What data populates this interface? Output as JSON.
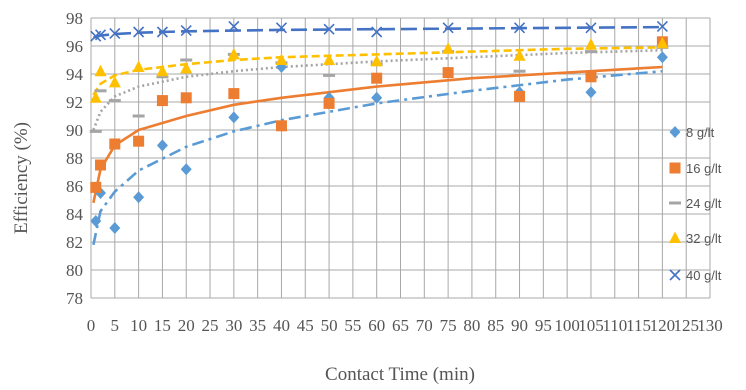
{
  "chart_data": {
    "type": "scatter",
    "title": "",
    "xlabel": "Contact Time (min)",
    "ylabel": "Efficiency (%)",
    "xlim": [
      0,
      130
    ],
    "ylim": [
      78,
      98
    ],
    "x_ticks": [
      "0",
      "5",
      "10",
      "15",
      "20",
      "25",
      "30",
      "35",
      "40",
      "45",
      "50",
      "55",
      "60",
      "65",
      "70",
      "75",
      "80",
      "85",
      "90",
      "95",
      "100",
      "105",
      "110",
      "115",
      "120",
      "125",
      "130"
    ],
    "y_ticks": [
      "78",
      "80",
      "82",
      "84",
      "86",
      "88",
      "90",
      "92",
      "94",
      "96",
      "98"
    ],
    "grid": true,
    "legend": "right",
    "series": [
      {
        "name": "8 g/lt",
        "marker": "diamond",
        "color": "#5B9BD5",
        "trendline": "dash-dot",
        "trend_points": [
          [
            0.5,
            81.8
          ],
          [
            2,
            84.2
          ],
          [
            5,
            85.6
          ],
          [
            10,
            87.1
          ],
          [
            20,
            88.8
          ],
          [
            30,
            89.9
          ],
          [
            40,
            90.7
          ],
          [
            60,
            91.9
          ],
          [
            80,
            92.8
          ],
          [
            100,
            93.6
          ],
          [
            120,
            94.2
          ]
        ],
        "x": [
          1,
          2,
          5,
          10,
          15,
          20,
          30,
          40,
          50,
          60,
          90,
          105,
          120
        ],
        "y": [
          83.5,
          85.5,
          83.0,
          85.2,
          88.9,
          87.2,
          90.9,
          94.5,
          92.3,
          92.3,
          92.7,
          92.7,
          95.2
        ]
      },
      {
        "name": "16 g/lt",
        "marker": "square",
        "color": "#ED7D31",
        "trendline": "solid",
        "trend_points": [
          [
            0.5,
            84.8
          ],
          [
            2,
            87.2
          ],
          [
            5,
            88.9
          ],
          [
            10,
            90.0
          ],
          [
            20,
            91.0
          ],
          [
            30,
            91.8
          ],
          [
            40,
            92.3
          ],
          [
            60,
            93.1
          ],
          [
            80,
            93.7
          ],
          [
            100,
            94.1
          ],
          [
            120,
            94.5
          ]
        ],
        "x": [
          1,
          2,
          5,
          10,
          15,
          20,
          30,
          40,
          50,
          60,
          75,
          90,
          105,
          120
        ],
        "y": [
          85.9,
          87.5,
          89.0,
          89.2,
          92.1,
          92.3,
          92.6,
          90.3,
          91.9,
          93.7,
          94.1,
          92.4,
          93.8,
          96.3
        ]
      },
      {
        "name": "24 g/lt",
        "marker": "dash",
        "color": "#A5A5A5",
        "trendline": "dotted",
        "trend_points": [
          [
            0.5,
            90.0
          ],
          [
            2,
            91.3
          ],
          [
            5,
            92.4
          ],
          [
            10,
            93.1
          ],
          [
            20,
            93.8
          ],
          [
            30,
            94.2
          ],
          [
            40,
            94.5
          ],
          [
            60,
            94.9
          ],
          [
            80,
            95.2
          ],
          [
            100,
            95.5
          ],
          [
            120,
            95.7
          ]
        ],
        "x": [
          1,
          2,
          5,
          10,
          15,
          20,
          30,
          40,
          50,
          60,
          75,
          90,
          105,
          120
        ],
        "y": [
          89.9,
          92.8,
          92.1,
          91.0,
          93.8,
          95.0,
          95.4,
          94.8,
          93.9,
          94.7,
          95.6,
          94.2,
          95.6,
          95.9
        ]
      },
      {
        "name": "32 g/lt",
        "marker": "triangle",
        "color": "#FFC000",
        "trendline": "dashed",
        "trend_points": [
          [
            0.5,
            92.5
          ],
          [
            2,
            93.3
          ],
          [
            5,
            93.9
          ],
          [
            10,
            94.3
          ],
          [
            20,
            94.7
          ],
          [
            30,
            95.0
          ],
          [
            40,
            95.2
          ],
          [
            60,
            95.4
          ],
          [
            80,
            95.6
          ],
          [
            100,
            95.8
          ],
          [
            120,
            95.9
          ]
        ],
        "x": [
          1,
          2,
          5,
          10,
          15,
          20,
          30,
          40,
          50,
          60,
          75,
          90,
          105,
          120
        ],
        "y": [
          92.3,
          94.2,
          93.4,
          94.5,
          94.2,
          94.4,
          95.4,
          95.0,
          95.0,
          94.9,
          95.8,
          95.3,
          96.1,
          96.2
        ]
      },
      {
        "name": "40 g/lt",
        "marker": "x",
        "color": "#4472C4",
        "trendline": "long-dash",
        "trend_points": [
          [
            0.5,
            96.6
          ],
          [
            2,
            96.75
          ],
          [
            5,
            96.85
          ],
          [
            10,
            96.95
          ],
          [
            20,
            97.05
          ],
          [
            30,
            97.1
          ],
          [
            40,
            97.15
          ],
          [
            60,
            97.2
          ],
          [
            80,
            97.25
          ],
          [
            100,
            97.3
          ],
          [
            120,
            97.35
          ]
        ],
        "x": [
          1,
          2,
          5,
          10,
          15,
          20,
          30,
          40,
          50,
          60,
          75,
          90,
          105,
          120
        ],
        "y": [
          96.7,
          96.8,
          96.9,
          97.0,
          97.0,
          97.1,
          97.4,
          97.3,
          97.2,
          97.0,
          97.3,
          97.3,
          97.3,
          97.4
        ]
      }
    ]
  }
}
